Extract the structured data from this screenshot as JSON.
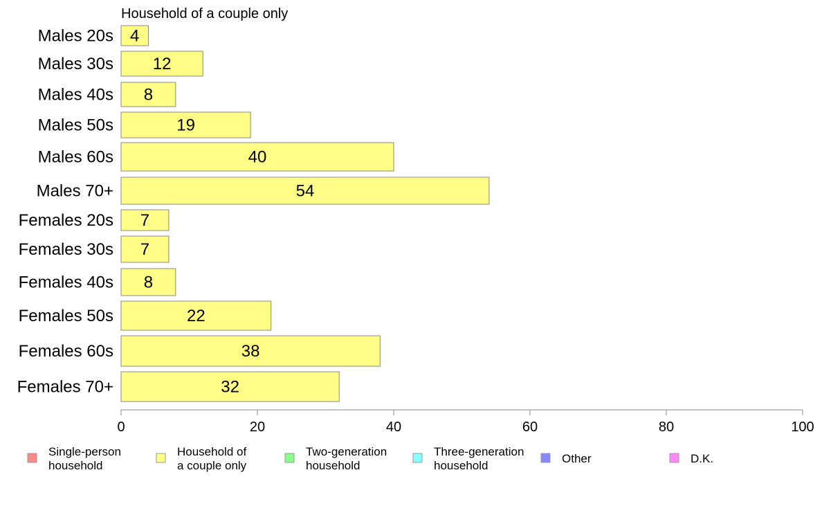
{
  "chart_data": {
    "type": "bar",
    "orientation": "horizontal",
    "title": "Household of a couple only",
    "categories": [
      "Males 20s",
      "Males 30s",
      "Males 40s",
      "Males 50s",
      "Males 60s",
      "Males 70+",
      "Females 20s",
      "Females 30s",
      "Females 40s",
      "Females 50s",
      "Females 60s",
      "Females 70+"
    ],
    "series": [
      {
        "name": "Household of a couple only",
        "values": [
          4,
          12,
          8,
          19,
          40,
          54,
          7,
          7,
          8,
          22,
          38,
          32
        ],
        "color": "#ffff88"
      }
    ],
    "xlim": [
      0,
      100
    ],
    "xticks": [
      0,
      20,
      40,
      60,
      80,
      100
    ],
    "grid": false,
    "legend_position": "bottom",
    "legend": [
      {
        "label_lines": [
          "Single-person",
          "household"
        ],
        "color": "#ff8888"
      },
      {
        "label_lines": [
          "Household of",
          "a couple only"
        ],
        "color": "#ffff88"
      },
      {
        "label_lines": [
          "Two-generation",
          "household"
        ],
        "color": "#88ff88"
      },
      {
        "label_lines": [
          "Three-generation",
          "household"
        ],
        "color": "#88ffff"
      },
      {
        "label_lines": [
          "Other"
        ],
        "color": "#8888ff"
      },
      {
        "label_lines": [
          "D.K."
        ],
        "color": "#ff88ff"
      }
    ],
    "colors": {
      "bar_stroke": "#888888",
      "axis": "#888888",
      "text": "#000000"
    }
  }
}
